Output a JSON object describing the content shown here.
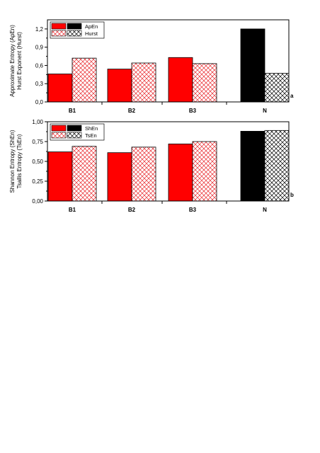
{
  "chart_data": [
    {
      "type": "bar",
      "panel_label": "a",
      "ylabel": [
        "Approximate Entropy (ApEn)",
        "Hurst Exponent (Hurst)"
      ],
      "categories": [
        "B1",
        "B2",
        "B3",
        "N"
      ],
      "ylim": [
        0,
        1.35
      ],
      "yticks": [
        0.0,
        0.3,
        0.6,
        0.9,
        1.2
      ],
      "ytick_labels": [
        "0,0",
        "0,3",
        "0,6",
        "0,9",
        "1,2"
      ],
      "legend_position": "top-left",
      "series": [
        {
          "name": "ApEn",
          "values": [
            0.46,
            0.54,
            0.73,
            1.2
          ],
          "colors": [
            "#ff0000",
            "#ff0000",
            "#ff0000",
            "#000000"
          ],
          "pattern": "solid"
        },
        {
          "name": "Hurst",
          "values": [
            0.72,
            0.64,
            0.63,
            0.47
          ],
          "colors": [
            "#ff0000",
            "#ff0000",
            "#ff0000",
            "#000000"
          ],
          "pattern": "crosshatch"
        }
      ],
      "legend": [
        {
          "swatches": [
            {
              "color": "#ff0000",
              "pattern": "solid"
            },
            {
              "color": "#000000",
              "pattern": "solid"
            }
          ],
          "label": "ApEn"
        },
        {
          "swatches": [
            {
              "color": "#ff0000",
              "pattern": "crosshatch"
            },
            {
              "color": "#000000",
              "pattern": "crosshatch"
            }
          ],
          "label": "Hurst"
        }
      ]
    },
    {
      "type": "bar",
      "panel_label": "b",
      "ylabel": [
        "Shannon Entropy (ShEn)",
        "Tsallis Entropy (TsEn)"
      ],
      "categories": [
        "B1",
        "B2",
        "B3",
        "N"
      ],
      "ylim": [
        0,
        1.0
      ],
      "yticks": [
        0.0,
        0.25,
        0.5,
        0.75,
        1.0
      ],
      "ytick_labels": [
        "0,00",
        "0,25",
        "0,50",
        "0,75",
        "1,00"
      ],
      "legend_position": "top-left",
      "series": [
        {
          "name": "ShEn",
          "values": [
            0.62,
            0.61,
            0.72,
            0.88
          ],
          "colors": [
            "#ff0000",
            "#ff0000",
            "#ff0000",
            "#000000"
          ],
          "pattern": "solid"
        },
        {
          "name": "TsEn",
          "values": [
            0.69,
            0.68,
            0.75,
            0.89
          ],
          "colors": [
            "#ff0000",
            "#ff0000",
            "#ff0000",
            "#000000"
          ],
          "pattern": "crosshatch"
        }
      ],
      "legend": [
        {
          "swatches": [
            {
              "color": "#ff0000",
              "pattern": "solid"
            },
            {
              "color": "#000000",
              "pattern": "solid"
            }
          ],
          "label": "ShEn"
        },
        {
          "swatches": [
            {
              "color": "#ff0000",
              "pattern": "crosshatch"
            },
            {
              "color": "#000000",
              "pattern": "crosshatch"
            }
          ],
          "label": "TsEn"
        }
      ]
    }
  ]
}
